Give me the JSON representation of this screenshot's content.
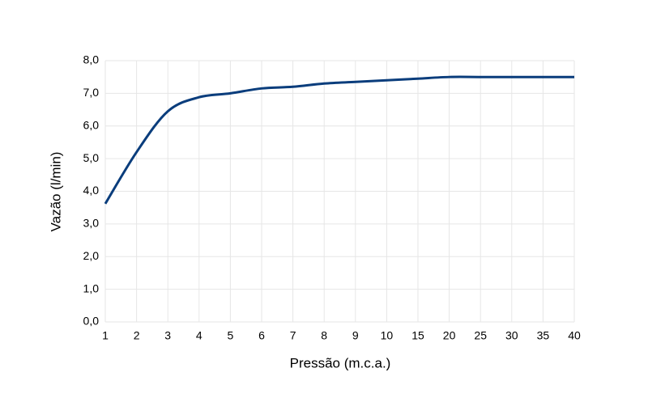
{
  "chart_data": {
    "type": "line",
    "x_label": "Pressão (m.c.a.)",
    "y_label": "Vazão (l/min)",
    "categories": [
      "1",
      "2",
      "3",
      "4",
      "5",
      "6",
      "7",
      "8",
      "9",
      "10",
      "15",
      "20",
      "25",
      "30",
      "35",
      "40"
    ],
    "series": [
      {
        "name": "Vazão",
        "color": "#0a3d7c",
        "values": [
          3.62,
          5.2,
          6.45,
          6.88,
          7.0,
          7.15,
          7.2,
          7.3,
          7.35,
          7.4,
          7.45,
          7.5,
          7.5,
          7.5,
          7.5,
          7.5
        ]
      }
    ],
    "ylim": [
      0,
      8
    ],
    "yticks": [
      {
        "value": 0,
        "label": "0,0"
      },
      {
        "value": 1,
        "label": "1,0"
      },
      {
        "value": 2,
        "label": "2,0"
      },
      {
        "value": 3,
        "label": "3,0"
      },
      {
        "value": 4,
        "label": "4,0"
      },
      {
        "value": 5,
        "label": "5,0"
      },
      {
        "value": 6,
        "label": "6,0"
      },
      {
        "value": 7,
        "label": "7,0"
      },
      {
        "value": 8,
        "label": "8,0"
      }
    ],
    "grid": true
  }
}
